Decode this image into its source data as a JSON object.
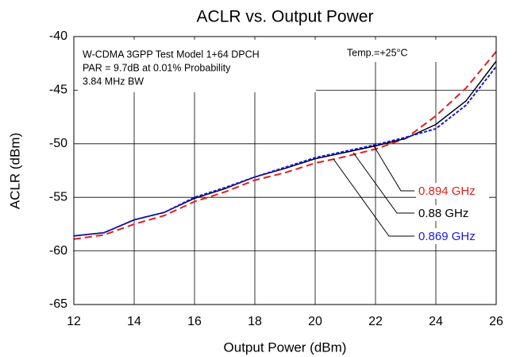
{
  "chart_data": {
    "type": "line",
    "title": "ACLR vs. Output Power",
    "xlabel": "Output Power (dBm)",
    "ylabel": "ACLR (dBm)",
    "annotations": [
      "W-CDMA 3GPP Test Model 1+64 DPCH",
      "PAR = 9.7dB at 0.01% Probability",
      "3.84 MHz BW",
      "Temp.=+25°C"
    ],
    "x": [
      12,
      13,
      14,
      15,
      16,
      17,
      18,
      19,
      20,
      21,
      22,
      23,
      24,
      25,
      26
    ],
    "series": [
      {
        "name": "0.894 GHz",
        "color": "#e0201b",
        "dash": true,
        "values": [
          -58.9,
          -58.5,
          -57.5,
          -56.7,
          -55.4,
          -54.5,
          -53.4,
          -52.7,
          -51.8,
          -51.2,
          -50.5,
          -49.5,
          -47.4,
          -44.8,
          -41.4
        ]
      },
      {
        "name": "0.88 GHz",
        "color": "#000000",
        "dash": false,
        "values": [
          -58.6,
          -58.3,
          -57.1,
          -56.4,
          -55.1,
          -54.2,
          -53.1,
          -52.3,
          -51.4,
          -50.8,
          -50.2,
          -49.5,
          -48.2,
          -46.0,
          -42.3
        ]
      },
      {
        "name": "0.869 GHz",
        "color": "#1a1adc",
        "dash": true,
        "values": [
          -58.6,
          -58.3,
          -57.1,
          -56.4,
          -55.0,
          -54.1,
          -53.1,
          -52.2,
          -51.3,
          -50.7,
          -50.1,
          -49.4,
          -48.6,
          -46.4,
          -42.8
        ]
      }
    ],
    "xlim": [
      12,
      26
    ],
    "xticks": [
      12,
      14,
      16,
      18,
      20,
      22,
      24,
      26
    ],
    "ylim": [
      -65,
      -40
    ],
    "yticks": [
      -65,
      -60,
      -55,
      -50,
      -45,
      -40
    ],
    "grid": true
  }
}
